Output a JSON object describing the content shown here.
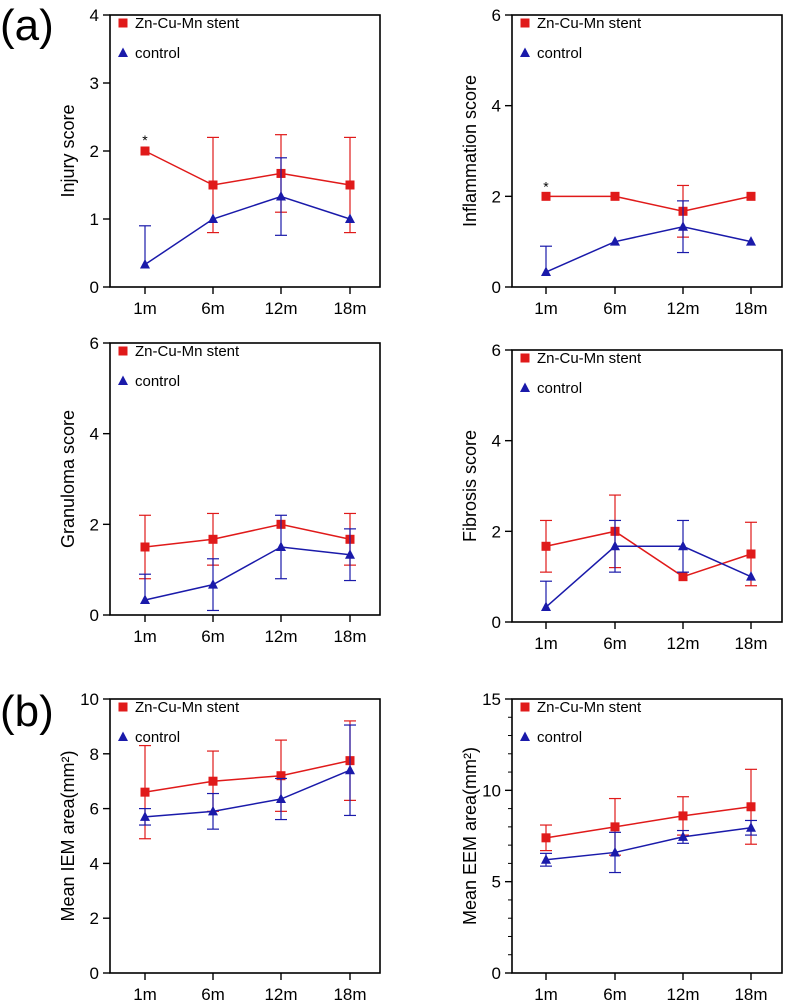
{
  "panel_labels": [
    "(a)",
    "(b)"
  ],
  "colors": {
    "stent": "#e01a1a",
    "control": "#1a1aaa",
    "axis": "#000000"
  },
  "chart_data": [
    {
      "type": "line",
      "panel": "a",
      "ylabel": "Injury score",
      "categories": [
        "1m",
        "6m",
        "12m",
        "18m"
      ],
      "ylim": [
        0,
        4
      ],
      "yticks": [
        0,
        1,
        2,
        3,
        4
      ],
      "minor_ticks": [],
      "legend": [
        "Zn-Cu-Mn stent",
        "control"
      ],
      "series": [
        {
          "name": "Zn-Cu-Mn stent",
          "marker": "square",
          "values": [
            2.0,
            1.5,
            1.67,
            1.5
          ],
          "err_low": [
            0,
            0.7,
            0.57,
            0.7
          ],
          "err_high": [
            0,
            0.7,
            0.57,
            0.7
          ]
        },
        {
          "name": "control",
          "marker": "triangle",
          "values": [
            0.33,
            1.0,
            1.33,
            1.0
          ],
          "err_low": [
            0,
            0,
            0.57,
            0
          ],
          "err_high": [
            0.57,
            0,
            0.57,
            0
          ]
        }
      ],
      "annotations": [
        {
          "text": "*",
          "category": "1m",
          "y": 2.12
        }
      ]
    },
    {
      "type": "line",
      "panel": "a",
      "ylabel": "Inflammation score",
      "categories": [
        "1m",
        "6m",
        "12m",
        "18m"
      ],
      "ylim": [
        0,
        6
      ],
      "yticks": [
        0,
        2,
        4,
        6
      ],
      "minor_ticks": [],
      "legend": [
        "Zn-Cu-Mn stent",
        "control"
      ],
      "series": [
        {
          "name": "Zn-Cu-Mn stent",
          "marker": "square",
          "values": [
            2.0,
            2.0,
            1.67,
            2.0
          ],
          "err_low": [
            0,
            0,
            0.57,
            0
          ],
          "err_high": [
            0,
            0,
            0.57,
            0
          ]
        },
        {
          "name": "control",
          "marker": "triangle",
          "values": [
            0.33,
            1.0,
            1.33,
            1.0
          ],
          "err_low": [
            0,
            0,
            0.57,
            0
          ],
          "err_high": [
            0.57,
            0,
            0.57,
            0
          ]
        }
      ],
      "annotations": [
        {
          "text": "*",
          "category": "1m",
          "y": 2.15
        }
      ]
    },
    {
      "type": "line",
      "panel": "a",
      "ylabel": "Granuloma score",
      "categories": [
        "1m",
        "6m",
        "12m",
        "18m"
      ],
      "ylim": [
        0,
        6
      ],
      "yticks": [
        0,
        2,
        4,
        6
      ],
      "minor_ticks": [],
      "legend": [
        "Zn-Cu-Mn stent",
        "control"
      ],
      "series": [
        {
          "name": "Zn-Cu-Mn stent",
          "marker": "square",
          "values": [
            1.5,
            1.67,
            2.0,
            1.67
          ],
          "err_low": [
            0.7,
            0.57,
            0,
            0.57
          ],
          "err_high": [
            0.7,
            0.57,
            0,
            0.57
          ]
        },
        {
          "name": "control",
          "marker": "triangle",
          "values": [
            0.33,
            0.67,
            1.5,
            1.33
          ],
          "err_low": [
            0,
            0.57,
            0.7,
            0.57
          ],
          "err_high": [
            0.57,
            0.57,
            0.7,
            0.57
          ]
        }
      ],
      "annotations": []
    },
    {
      "type": "line",
      "panel": "a",
      "ylabel": "Fibrosis score",
      "categories": [
        "1m",
        "6m",
        "12m",
        "18m"
      ],
      "ylim": [
        0,
        6
      ],
      "yticks": [
        0,
        2,
        4,
        6
      ],
      "minor_ticks": [],
      "legend": [
        "Zn-Cu-Mn stent",
        "control"
      ],
      "series": [
        {
          "name": "Zn-Cu-Mn stent",
          "marker": "square",
          "values": [
            1.67,
            2.0,
            1.0,
            1.5
          ],
          "err_low": [
            0.57,
            0.8,
            0,
            0.7
          ],
          "err_high": [
            0.57,
            0.8,
            0,
            0.7
          ]
        },
        {
          "name": "control",
          "marker": "triangle",
          "values": [
            0.33,
            1.67,
            1.67,
            1.0
          ],
          "err_low": [
            0,
            0.57,
            0.57,
            0
          ],
          "err_high": [
            0.57,
            0.57,
            0.57,
            0
          ]
        }
      ],
      "annotations": []
    },
    {
      "type": "line",
      "panel": "b",
      "ylabel": "Mean IEM area(mm²)",
      "categories": [
        "1m",
        "6m",
        "12m",
        "18m"
      ],
      "ylim": [
        0,
        10
      ],
      "yticks": [
        0,
        2,
        4,
        6,
        8,
        10
      ],
      "minor_ticks": [],
      "legend": [
        "Zn-Cu-Mn stent",
        "control"
      ],
      "series": [
        {
          "name": "Zn-Cu-Mn stent",
          "marker": "square",
          "values": [
            6.6,
            7.0,
            7.2,
            7.75
          ],
          "err_low": [
            1.7,
            1.1,
            1.3,
            1.45
          ],
          "err_high": [
            1.7,
            1.1,
            1.3,
            1.45
          ]
        },
        {
          "name": "control",
          "marker": "triangle",
          "values": [
            5.7,
            5.9,
            6.35,
            7.4
          ],
          "err_low": [
            0.3,
            0.65,
            0.75,
            1.65
          ],
          "err_high": [
            0.3,
            0.65,
            0.75,
            1.65
          ]
        }
      ],
      "annotations": []
    },
    {
      "type": "line",
      "panel": "b",
      "ylabel": "Mean EEM area(mm²)",
      "categories": [
        "1m",
        "6m",
        "12m",
        "18m"
      ],
      "ylim": [
        0,
        15
      ],
      "yticks": [
        0,
        5,
        10,
        15
      ],
      "minor_ticks": [
        1,
        2,
        3,
        4,
        6,
        7,
        8,
        9,
        11,
        12,
        13,
        14
      ],
      "legend": [
        "Zn-Cu-Mn stent",
        "control"
      ],
      "series": [
        {
          "name": "Zn-Cu-Mn stent",
          "marker": "square",
          "values": [
            7.4,
            8.0,
            8.6,
            9.1
          ],
          "err_low": [
            0.7,
            1.55,
            1.05,
            2.05
          ],
          "err_high": [
            0.7,
            1.55,
            1.05,
            2.05
          ]
        },
        {
          "name": "control",
          "marker": "triangle",
          "values": [
            6.2,
            6.6,
            7.45,
            7.95
          ],
          "err_low": [
            0.35,
            1.1,
            0.35,
            0.4
          ],
          "err_high": [
            0.35,
            1.1,
            0.35,
            0.4
          ]
        }
      ],
      "annotations": []
    }
  ]
}
